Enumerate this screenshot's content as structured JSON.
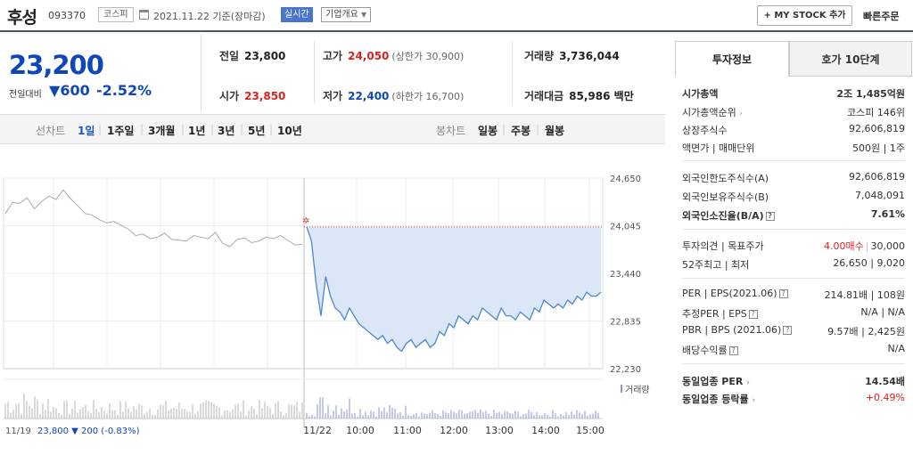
{
  "header": {
    "name": "후성",
    "code": "093370",
    "market": "코스피",
    "date": "2021.11.22 기준(장마감)",
    "realtime": "실시간",
    "corp_info": "기업개요",
    "my_stock": "+ MY STOCK 추가",
    "quick_order": "빠른주문"
  },
  "price": {
    "current": "23,200",
    "change_label": "전일대비",
    "change_arrow": "▼",
    "change": "600",
    "change_pct": "-2.52%"
  },
  "summary": {
    "prev_label": "전일",
    "prev": "23,800",
    "open_label": "시가",
    "open": "23,850",
    "high_label": "고가",
    "high": "24,050",
    "upper_limit": "(상한가 30,900)",
    "low_label": "저가",
    "low": "22,400",
    "lower_limit": "(하한가 16,700)",
    "volume_label": "거래량",
    "volume": "3,736,044",
    "amount_label": "거래대금",
    "amount": "85,986 백만"
  },
  "period_tabs": {
    "line_label": "선차트",
    "line": [
      "1일",
      "1주일",
      "3개월",
      "1년",
      "3년",
      "5년",
      "10년"
    ],
    "candle_label": "봉차트",
    "candle": [
      "일봉",
      "주봉",
      "월봉"
    ]
  },
  "chart_data": {
    "type": "line",
    "title": "",
    "y_ticks": [
      "24,650",
      "24,045",
      "23,440",
      "22,835",
      "22,230"
    ],
    "ylim": [
      22230,
      24650
    ],
    "x_ticks": [
      "11/22",
      "10:00",
      "11:00",
      "12:00",
      "13:00",
      "14:00",
      "15:00"
    ],
    "prev_day_label": "11/19",
    "prev_close_ref": 23800,
    "volume_legend": "거래량",
    "footer": {
      "date": "11/19",
      "price": "23,800",
      "arrow": "▼",
      "change": "200",
      "pct": "(-0.83%)"
    },
    "series": [
      {
        "segment": "11/19",
        "values": [
          24200,
          24340,
          24330,
          24400,
          24260,
          24350,
          24420,
          24380,
          24500,
          24390,
          24300,
          24200,
          24180,
          24120,
          24080,
          24100,
          24050,
          24000,
          23920,
          23940,
          23880,
          23900,
          23950,
          23870,
          23860,
          23850,
          23920,
          23900,
          23880,
          23960,
          23820,
          23780,
          23870,
          23890,
          23830,
          23850,
          23900,
          23880,
          23920,
          23860,
          23800,
          23810
        ]
      },
      {
        "segment": "11/22",
        "values": [
          24030,
          23850,
          23300,
          22900,
          23400,
          23150,
          23000,
          22950,
          22850,
          23000,
          22900,
          22800,
          22750,
          22700,
          22650,
          22600,
          22650,
          22550,
          22600,
          22500,
          22450,
          22550,
          22600,
          22500,
          22550,
          22600,
          22500,
          22550,
          22700,
          22650,
          22800,
          22750,
          22900,
          22850,
          22800,
          22900,
          22850,
          23000,
          22950,
          22900,
          22850,
          23000,
          22900,
          22900,
          22850,
          22950,
          22900,
          22850,
          23000,
          22950,
          23100,
          23050,
          23000,
          23050,
          23000,
          23100,
          23050,
          23150,
          23100,
          23200,
          23150,
          23150,
          23200
        ]
      }
    ]
  },
  "invest": {
    "tab_active": "투자정보",
    "tab_other": "호가 10단계",
    "rows": [
      {
        "label": "시가총액",
        "value": "2조 1,485억원"
      },
      {
        "label": "시가총액순위",
        "value": "코스피 146위"
      },
      {
        "label": "상장주식수",
        "value": "92,606,819"
      },
      {
        "label": "액면가 | 매매단위",
        "value": "500원 | 1주"
      },
      {
        "label": "외국인한도주식수(A)",
        "value": "92,606,819"
      },
      {
        "label": "외국인보유주식수(B)",
        "value": "7,048,091"
      },
      {
        "label": "외국인소진율(B/A)",
        "value": "7.61%"
      },
      {
        "label": "투자의견 | 목표주가",
        "value_red": "4.00매수",
        "value": "30,000"
      },
      {
        "label": "52주최고 | 최저",
        "value": "26,650 | 9,020"
      },
      {
        "label": "PER | EPS(2021.06)",
        "value": "214.81배 | 108원"
      },
      {
        "label": "추정PER | EPS",
        "value": "N/A | N/A"
      },
      {
        "label": "PBR | BPS (2021.06)",
        "value": "9.57배 | 2,425원"
      },
      {
        "label": "배당수익률",
        "value": "N/A"
      },
      {
        "label": "동일업종 PER",
        "value": "14.54배"
      },
      {
        "label": "동일업종 등락률",
        "value": "+0.49%"
      }
    ]
  },
  "colors": {
    "up": "#dd2020",
    "down": "#0f47b8",
    "line": "#4a86d8",
    "fill": "#dbe7f7",
    "prev": "#aaaaaa"
  }
}
